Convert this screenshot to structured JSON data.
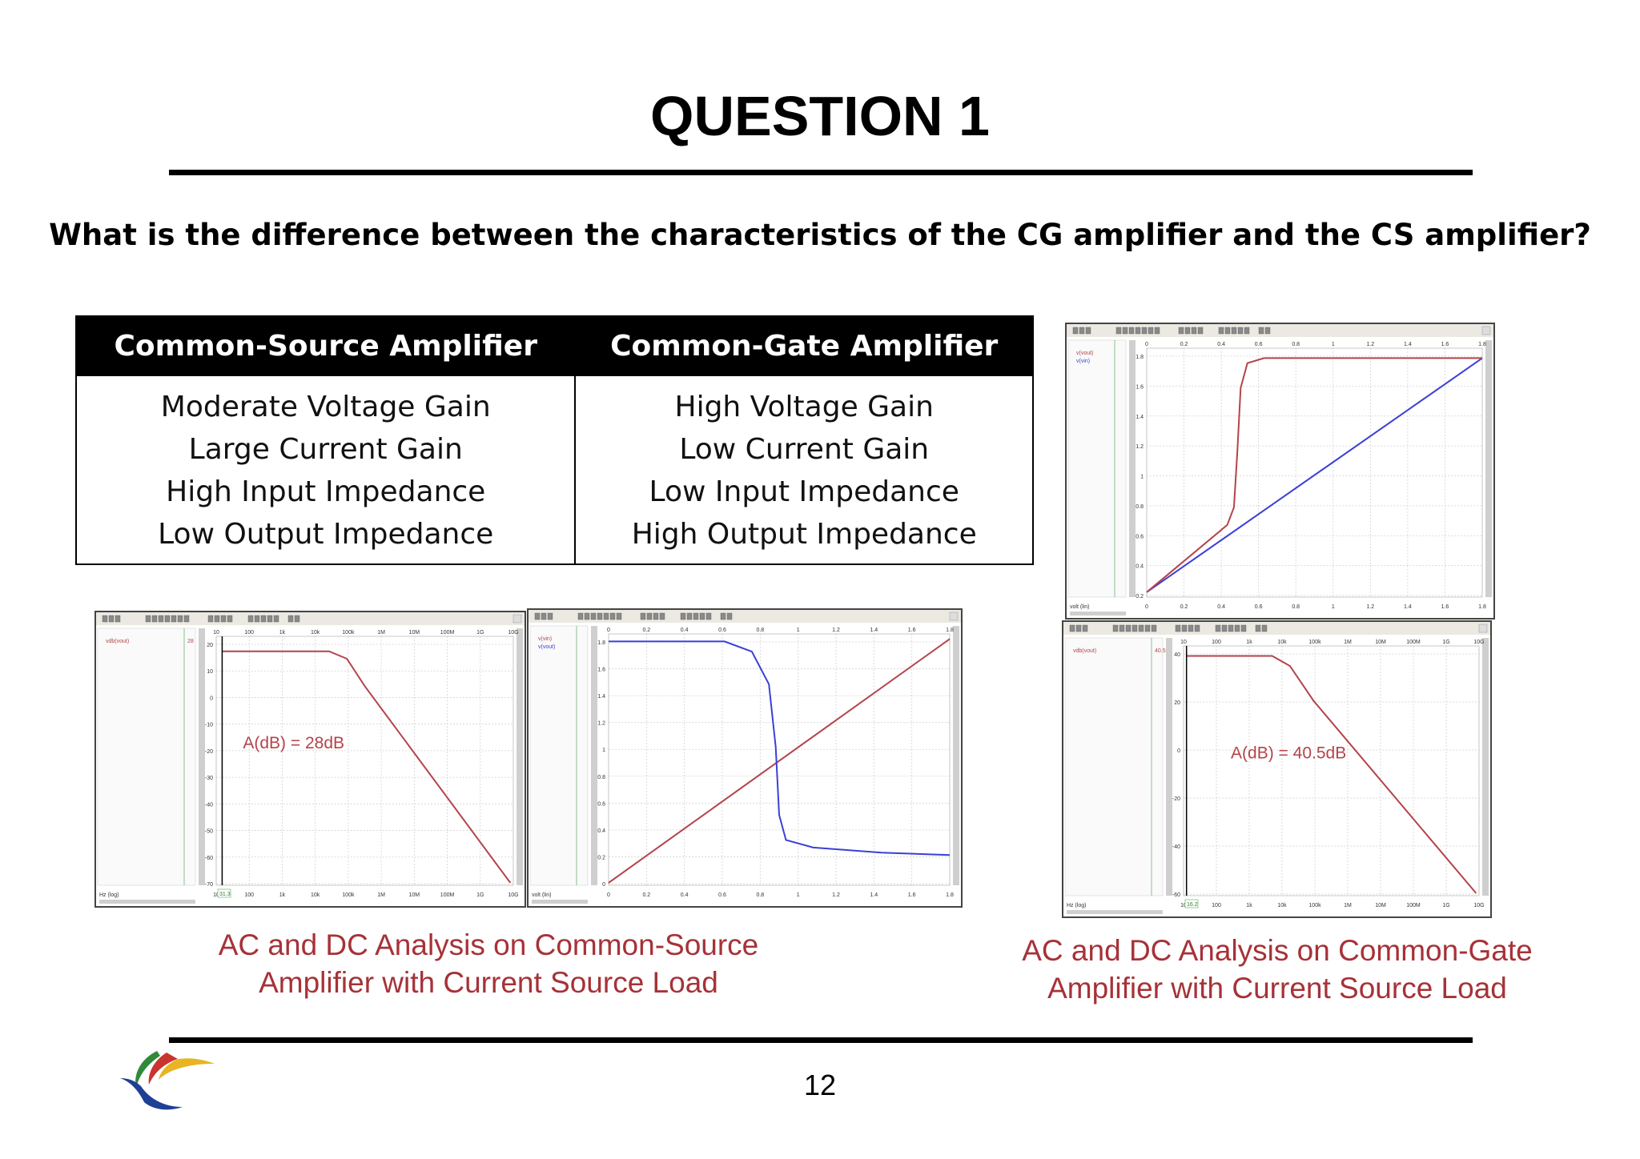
{
  "title": "QUESTION 1",
  "question": "What is the difference between the characteristics of the CG amplifier and the CS amplifier?",
  "table": {
    "headers": [
      "Common-Source Amplifier",
      "Common-Gate Amplifier"
    ],
    "cs": [
      "Moderate Voltage Gain",
      "Large Current Gain",
      "High Input Impedance",
      "Low Output Impedance"
    ],
    "cg": [
      "High Voltage Gain",
      "Low Current Gain",
      "Low Input Impedance",
      "High Output Impedance"
    ]
  },
  "plots": {
    "cs_ac": {
      "annotation": "A(dB) = 28dB",
      "x_ticks": [
        "10",
        "100",
        "1k",
        "10k",
        "100k",
        "1M",
        "10M",
        "100M",
        "1G",
        "10G"
      ],
      "y_ticks": [
        "20",
        "10",
        "0",
        "-10",
        "-20",
        "-30",
        "-40",
        "-50",
        "-60",
        "-70"
      ],
      "trace_label": "vdb(vout)",
      "trace_value": "28",
      "axis_label": "Hz (log)",
      "cursor_value": "31.3"
    },
    "cs_dc": {
      "x_ticks": [
        "0",
        "0.2",
        "0.4",
        "0.6",
        "0.8",
        "1",
        "1.2",
        "1.4",
        "1.6",
        "1.8"
      ],
      "y_ticks": [
        "1.8",
        "1.6",
        "1.4",
        "1.2",
        "1",
        "0.8",
        "0.6",
        "0.4",
        "0.2",
        "0"
      ],
      "trace_labels": [
        "v(vin)",
        "v(vout)"
      ],
      "axis_label": "volt (lin)"
    },
    "cg_dc": {
      "x_ticks": [
        "0",
        "0.2",
        "0.4",
        "0.6",
        "0.8",
        "1",
        "1.2",
        "1.4",
        "1.6",
        "1.8"
      ],
      "y_ticks": [
        "1.8",
        "1.6",
        "1.4",
        "1.2",
        "1",
        "0.8",
        "0.6",
        "0.4",
        "0.2"
      ],
      "trace_labels": [
        "v(vout)",
        "v(vin)"
      ],
      "axis_label": "volt (lin)"
    },
    "cg_ac": {
      "annotation": "A(dB) = 40.5dB",
      "x_ticks": [
        "10",
        "100",
        "1k",
        "10k",
        "100k",
        "1M",
        "10M",
        "100M",
        "1G",
        "10G"
      ],
      "y_ticks": [
        "40",
        "20",
        "0",
        "-20",
        "-40",
        "-60"
      ],
      "trace_label": "vdb(vout)",
      "trace_value": "40.5",
      "axis_label": "Hz (log)",
      "cursor_value": "16.2"
    }
  },
  "captions": {
    "cs": [
      "AC and DC Analysis on Common-Source",
      "Amplifier with Current Source Load"
    ],
    "cg": [
      "AC and DC Analysis on Common-Gate",
      "Amplifier with Current Source Load"
    ]
  },
  "page_number": "12",
  "colors": {
    "caption": "#a63238",
    "trace_red": "#b5434a",
    "trace_blue": "#3b3fd6"
  }
}
